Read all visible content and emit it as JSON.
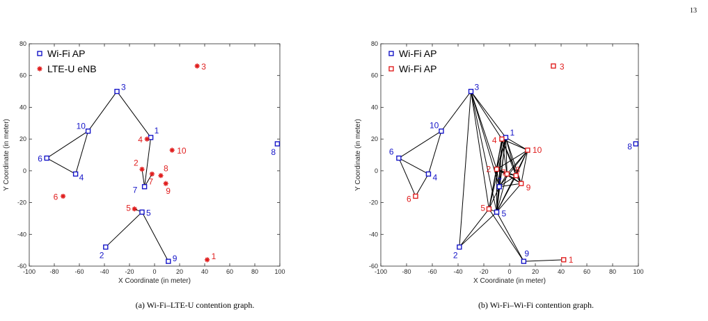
{
  "page_number": "13",
  "colors": {
    "wifi": "#1515c8",
    "lte": "#e01e1e",
    "edge": "#000000",
    "axis": "#262626"
  },
  "chart_data": [
    {
      "type": "scatter",
      "caption": "(a) Wi-Fi–LTE-U contention graph.",
      "xlabel": "X Coordinate (in meter)",
      "ylabel": "Y Coordinate (in meter)",
      "xlim": [
        -100,
        100
      ],
      "ylim": [
        -60,
        80
      ],
      "xticks": [
        -100,
        -80,
        -60,
        -40,
        -20,
        0,
        20,
        40,
        60,
        80,
        100
      ],
      "yticks": [
        -60,
        -40,
        -20,
        0,
        20,
        40,
        60,
        80
      ],
      "grid": false,
      "legend_placement": "top-left",
      "legend": [
        {
          "label": "Wi-Fi AP",
          "marker": "square",
          "color": "#1515c8"
        },
        {
          "label": "LTE-U eNB",
          "marker": "star",
          "color": "#e01e1e"
        }
      ],
      "series": [
        {
          "name": "Wi-Fi AP",
          "marker": "square",
          "color": "#1515c8",
          "points": [
            {
              "id": "1",
              "x": -3,
              "y": 21
            },
            {
              "id": "2",
              "x": -39,
              "y": -48
            },
            {
              "id": "3",
              "x": -30,
              "y": 50
            },
            {
              "id": "4",
              "x": -63,
              "y": -2
            },
            {
              "id": "5",
              "x": -10,
              "y": -26
            },
            {
              "id": "6",
              "x": -86,
              "y": 8
            },
            {
              "id": "7",
              "x": -8,
              "y": -10
            },
            {
              "id": "8",
              "x": 98,
              "y": 17
            },
            {
              "id": "9",
              "x": 11,
              "y": -57
            },
            {
              "id": "10",
              "x": -53,
              "y": 25
            }
          ]
        },
        {
          "name": "LTE-U eNB",
          "marker": "star",
          "color": "#e01e1e",
          "points": [
            {
              "id": "1",
              "x": 42,
              "y": -56
            },
            {
              "id": "2",
              "x": -10,
              "y": 1
            },
            {
              "id": "3",
              "x": 34,
              "y": 66
            },
            {
              "id": "4",
              "x": -6,
              "y": 20
            },
            {
              "id": "5",
              "x": -16,
              "y": -24
            },
            {
              "id": "6",
              "x": -73,
              "y": -16
            },
            {
              "id": "7",
              "x": -2,
              "y": -2
            },
            {
              "id": "8",
              "x": 5,
              "y": -3
            },
            {
              "id": "9",
              "x": 9,
              "y": -8
            },
            {
              "id": "10",
              "x": 14,
              "y": 13
            }
          ]
        }
      ],
      "edges": [
        [
          [
            -86,
            8
          ],
          [
            -53,
            25
          ]
        ],
        [
          [
            -86,
            8
          ],
          [
            -63,
            -2
          ]
        ],
        [
          [
            -53,
            25
          ],
          [
            -63,
            -2
          ]
        ],
        [
          [
            -53,
            25
          ],
          [
            -30,
            50
          ]
        ],
        [
          [
            -30,
            50
          ],
          [
            -3,
            21
          ]
        ],
        [
          [
            -3,
            21
          ],
          [
            -8,
            -10
          ]
        ],
        [
          [
            -8,
            -10
          ],
          [
            -10,
            1
          ]
        ],
        [
          [
            -8,
            -10
          ],
          [
            -2,
            -2
          ]
        ],
        [
          [
            -10,
            -26
          ],
          [
            -16,
            -24
          ]
        ],
        [
          [
            -10,
            -26
          ],
          [
            -39,
            -48
          ]
        ],
        [
          [
            -10,
            -26
          ],
          [
            11,
            -57
          ]
        ]
      ]
    },
    {
      "type": "scatter",
      "caption": "(b) Wi-Fi–Wi-Fi contention graph.",
      "xlabel": "X Coordinate (in meter)",
      "ylabel": "Y Coordinate (in meter)",
      "xlim": [
        -100,
        100
      ],
      "ylim": [
        -60,
        80
      ],
      "xticks": [
        -100,
        -80,
        -60,
        -40,
        -20,
        0,
        20,
        40,
        60,
        80,
        100
      ],
      "yticks": [
        -60,
        -40,
        -20,
        0,
        20,
        40,
        60,
        80
      ],
      "grid": false,
      "legend_placement": "top-left",
      "legend": [
        {
          "label": "Wi-Fi AP",
          "marker": "square",
          "color": "#1515c8"
        },
        {
          "label": "Wi-Fi AP",
          "marker": "square",
          "color": "#e01e1e"
        }
      ],
      "series": [
        {
          "name": "Wi-Fi AP",
          "marker": "square",
          "color": "#1515c8",
          "points": [
            {
              "id": "1",
              "x": -3,
              "y": 21
            },
            {
              "id": "2",
              "x": -39,
              "y": -48
            },
            {
              "id": "3",
              "x": -30,
              "y": 50
            },
            {
              "id": "4",
              "x": -63,
              "y": -2
            },
            {
              "id": "5",
              "x": -10,
              "y": -26
            },
            {
              "id": "6",
              "x": -86,
              "y": 8
            },
            {
              "id": "7",
              "x": -8,
              "y": -10
            },
            {
              "id": "8",
              "x": 98,
              "y": 17
            },
            {
              "id": "9",
              "x": 11,
              "y": -57
            },
            {
              "id": "10",
              "x": -53,
              "y": 25
            }
          ]
        },
        {
          "name": "Wi-Fi AP",
          "marker": "square",
          "color": "#e01e1e",
          "points": [
            {
              "id": "1",
              "x": 42,
              "y": -56
            },
            {
              "id": "2",
              "x": -10,
              "y": 1
            },
            {
              "id": "3",
              "x": 34,
              "y": 66
            },
            {
              "id": "4",
              "x": -6,
              "y": 20
            },
            {
              "id": "5",
              "x": -16,
              "y": -24
            },
            {
              "id": "6",
              "x": -73,
              "y": -16
            },
            {
              "id": "7",
              "x": -2,
              "y": -2
            },
            {
              "id": "8",
              "x": 5,
              "y": -3
            },
            {
              "id": "9",
              "x": 9,
              "y": -8
            },
            {
              "id": "10",
              "x": 14,
              "y": 13
            }
          ]
        }
      ],
      "edges": [
        [
          [
            -86,
            8
          ],
          [
            -53,
            25
          ]
        ],
        [
          [
            -86,
            8
          ],
          [
            -63,
            -2
          ]
        ],
        [
          [
            -86,
            8
          ],
          [
            -73,
            -16
          ]
        ],
        [
          [
            -53,
            25
          ],
          [
            -63,
            -2
          ]
        ],
        [
          [
            -53,
            25
          ],
          [
            -30,
            50
          ]
        ],
        [
          [
            -63,
            -2
          ],
          [
            -73,
            -16
          ]
        ],
        [
          [
            -30,
            50
          ],
          [
            -3,
            21
          ]
        ],
        [
          [
            -30,
            50
          ],
          [
            -6,
            20
          ]
        ],
        [
          [
            -30,
            50
          ],
          [
            -10,
            1
          ]
        ],
        [
          [
            -30,
            50
          ],
          [
            -8,
            -10
          ]
        ],
        [
          [
            -30,
            50
          ],
          [
            -16,
            -24
          ]
        ],
        [
          [
            -30,
            50
          ],
          [
            -10,
            -26
          ]
        ],
        [
          [
            -30,
            50
          ],
          [
            -39,
            -48
          ]
        ],
        [
          [
            -3,
            21
          ],
          [
            -6,
            20
          ]
        ],
        [
          [
            -3,
            21
          ],
          [
            14,
            13
          ]
        ],
        [
          [
            -3,
            21
          ],
          [
            -10,
            1
          ]
        ],
        [
          [
            -3,
            21
          ],
          [
            -8,
            -10
          ]
        ],
        [
          [
            -3,
            21
          ],
          [
            -2,
            -2
          ]
        ],
        [
          [
            -3,
            21
          ],
          [
            5,
            -3
          ]
        ],
        [
          [
            -3,
            21
          ],
          [
            9,
            -8
          ]
        ],
        [
          [
            -3,
            21
          ],
          [
            -16,
            -24
          ]
        ],
        [
          [
            -3,
            21
          ],
          [
            -10,
            -26
          ]
        ],
        [
          [
            -6,
            20
          ],
          [
            14,
            13
          ]
        ],
        [
          [
            -6,
            20
          ],
          [
            -10,
            1
          ]
        ],
        [
          [
            -6,
            20
          ],
          [
            -8,
            -10
          ]
        ],
        [
          [
            -6,
            20
          ],
          [
            -2,
            -2
          ]
        ],
        [
          [
            -6,
            20
          ],
          [
            5,
            -3
          ]
        ],
        [
          [
            -6,
            20
          ],
          [
            9,
            -8
          ]
        ],
        [
          [
            -6,
            20
          ],
          [
            -16,
            -24
          ]
        ],
        [
          [
            -6,
            20
          ],
          [
            -10,
            -26
          ]
        ],
        [
          [
            14,
            13
          ],
          [
            -10,
            1
          ]
        ],
        [
          [
            14,
            13
          ],
          [
            -8,
            -10
          ]
        ],
        [
          [
            14,
            13
          ],
          [
            -2,
            -2
          ]
        ],
        [
          [
            14,
            13
          ],
          [
            5,
            -3
          ]
        ],
        [
          [
            14,
            13
          ],
          [
            9,
            -8
          ]
        ],
        [
          [
            14,
            13
          ],
          [
            -10,
            -26
          ]
        ],
        [
          [
            -10,
            1
          ],
          [
            -8,
            -10
          ]
        ],
        [
          [
            -10,
            1
          ],
          [
            -2,
            -2
          ]
        ],
        [
          [
            -10,
            1
          ],
          [
            5,
            -3
          ]
        ],
        [
          [
            -10,
            1
          ],
          [
            9,
            -8
          ]
        ],
        [
          [
            -10,
            1
          ],
          [
            -16,
            -24
          ]
        ],
        [
          [
            -10,
            1
          ],
          [
            -10,
            -26
          ]
        ],
        [
          [
            -8,
            -10
          ],
          [
            -2,
            -2
          ]
        ],
        [
          [
            -8,
            -10
          ],
          [
            5,
            -3
          ]
        ],
        [
          [
            -8,
            -10
          ],
          [
            9,
            -8
          ]
        ],
        [
          [
            -8,
            -10
          ],
          [
            -16,
            -24
          ]
        ],
        [
          [
            -8,
            -10
          ],
          [
            -10,
            -26
          ]
        ],
        [
          [
            -2,
            -2
          ],
          [
            5,
            -3
          ]
        ],
        [
          [
            -2,
            -2
          ],
          [
            9,
            -8
          ]
        ],
        [
          [
            -2,
            -2
          ],
          [
            -10,
            -26
          ]
        ],
        [
          [
            5,
            -3
          ],
          [
            9,
            -8
          ]
        ],
        [
          [
            5,
            -3
          ],
          [
            -10,
            -26
          ]
        ],
        [
          [
            9,
            -8
          ],
          [
            -10,
            -26
          ]
        ],
        [
          [
            -16,
            -24
          ],
          [
            -10,
            -26
          ]
        ],
        [
          [
            -16,
            -24
          ],
          [
            -39,
            -48
          ]
        ],
        [
          [
            -10,
            -26
          ],
          [
            -39,
            -48
          ]
        ],
        [
          [
            -10,
            -26
          ],
          [
            11,
            -57
          ]
        ],
        [
          [
            -16,
            -24
          ],
          [
            11,
            -57
          ]
        ],
        [
          [
            11,
            -57
          ],
          [
            42,
            -56
          ]
        ]
      ]
    }
  ]
}
